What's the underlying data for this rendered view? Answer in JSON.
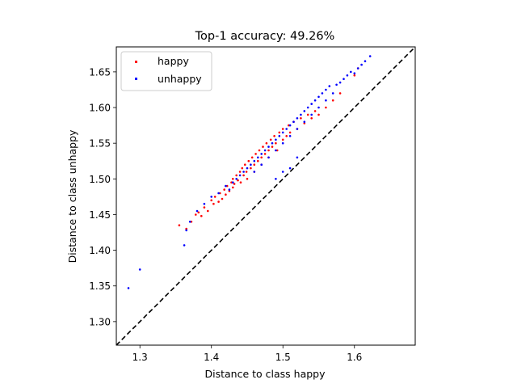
{
  "chart_data": {
    "type": "scatter",
    "title": "Top-1 accuracy: 49.26%",
    "xlabel": "Distance to class happy",
    "ylabel": "Distance to class unhappy",
    "xlim": [
      1.267,
      1.685
    ],
    "ylim": [
      1.267,
      1.685
    ],
    "xticks": [
      "1.3",
      "1.4",
      "1.5",
      "1.6"
    ],
    "yticks": [
      "1.30",
      "1.35",
      "1.40",
      "1.45",
      "1.50",
      "1.55",
      "1.60",
      "1.65"
    ],
    "reference_line": "y = x",
    "legend_position": "top-left",
    "grid": false,
    "series": [
      {
        "name": "happy",
        "color": "#ff0000",
        "x": [
          1.355,
          1.365,
          1.372,
          1.378,
          1.382,
          1.386,
          1.39,
          1.395,
          1.4,
          1.403,
          1.405,
          1.41,
          1.412,
          1.415,
          1.418,
          1.42,
          1.422,
          1.425,
          1.428,
          1.43,
          1.43,
          1.432,
          1.435,
          1.437,
          1.44,
          1.441,
          1.443,
          1.445,
          1.447,
          1.449,
          1.45,
          1.452,
          1.455,
          1.457,
          1.46,
          1.46,
          1.462,
          1.465,
          1.467,
          1.47,
          1.47,
          1.472,
          1.475,
          1.477,
          1.48,
          1.48,
          1.483,
          1.485,
          1.488,
          1.49,
          1.492,
          1.495,
          1.5,
          1.5,
          1.505,
          1.508,
          1.51,
          1.515,
          1.52,
          1.525,
          1.53,
          1.535,
          1.54,
          1.545,
          1.55,
          1.56,
          1.57,
          1.58,
          1.6,
          1.605
        ],
        "y": [
          1.435,
          1.43,
          1.44,
          1.45,
          1.453,
          1.448,
          1.46,
          1.455,
          1.47,
          1.465,
          1.475,
          1.468,
          1.48,
          1.472,
          1.485,
          1.478,
          1.49,
          1.483,
          1.495,
          1.488,
          1.5,
          1.493,
          1.505,
          1.498,
          1.51,
          1.495,
          1.515,
          1.505,
          1.52,
          1.51,
          1.5,
          1.525,
          1.515,
          1.53,
          1.52,
          1.51,
          1.535,
          1.525,
          1.54,
          1.53,
          1.52,
          1.545,
          1.535,
          1.55,
          1.54,
          1.53,
          1.555,
          1.545,
          1.56,
          1.55,
          1.54,
          1.565,
          1.555,
          1.57,
          1.56,
          1.575,
          1.565,
          1.58,
          1.57,
          1.585,
          1.578,
          1.59,
          1.585,
          1.595,
          1.59,
          1.6,
          1.61,
          1.62,
          1.645,
          1.655
        ]
      },
      {
        "name": "unhappy",
        "color": "#0000ff",
        "x": [
          1.284,
          1.3,
          1.362,
          1.365,
          1.37,
          1.38,
          1.39,
          1.4,
          1.41,
          1.42,
          1.425,
          1.43,
          1.435,
          1.44,
          1.445,
          1.45,
          1.455,
          1.46,
          1.46,
          1.465,
          1.47,
          1.47,
          1.475,
          1.48,
          1.48,
          1.485,
          1.49,
          1.49,
          1.495,
          1.5,
          1.5,
          1.505,
          1.51,
          1.51,
          1.515,
          1.52,
          1.52,
          1.525,
          1.53,
          1.53,
          1.535,
          1.54,
          1.54,
          1.545,
          1.55,
          1.55,
          1.555,
          1.56,
          1.56,
          1.565,
          1.57,
          1.575,
          1.58,
          1.585,
          1.59,
          1.595,
          1.6,
          1.605,
          1.61,
          1.615,
          1.622,
          1.49,
          1.5,
          1.52,
          1.51
        ],
        "y": [
          1.347,
          1.373,
          1.407,
          1.428,
          1.44,
          1.455,
          1.465,
          1.475,
          1.48,
          1.49,
          1.485,
          1.495,
          1.5,
          1.505,
          1.51,
          1.515,
          1.52,
          1.51,
          1.525,
          1.53,
          1.52,
          1.535,
          1.54,
          1.53,
          1.545,
          1.55,
          1.54,
          1.555,
          1.56,
          1.55,
          1.565,
          1.57,
          1.56,
          1.575,
          1.58,
          1.57,
          1.585,
          1.59,
          1.58,
          1.595,
          1.6,
          1.59,
          1.605,
          1.61,
          1.6,
          1.615,
          1.62,
          1.61,
          1.625,
          1.63,
          1.62,
          1.632,
          1.635,
          1.64,
          1.645,
          1.65,
          1.648,
          1.655,
          1.66,
          1.665,
          1.672,
          1.5,
          1.51,
          1.53,
          1.515
        ]
      }
    ]
  }
}
